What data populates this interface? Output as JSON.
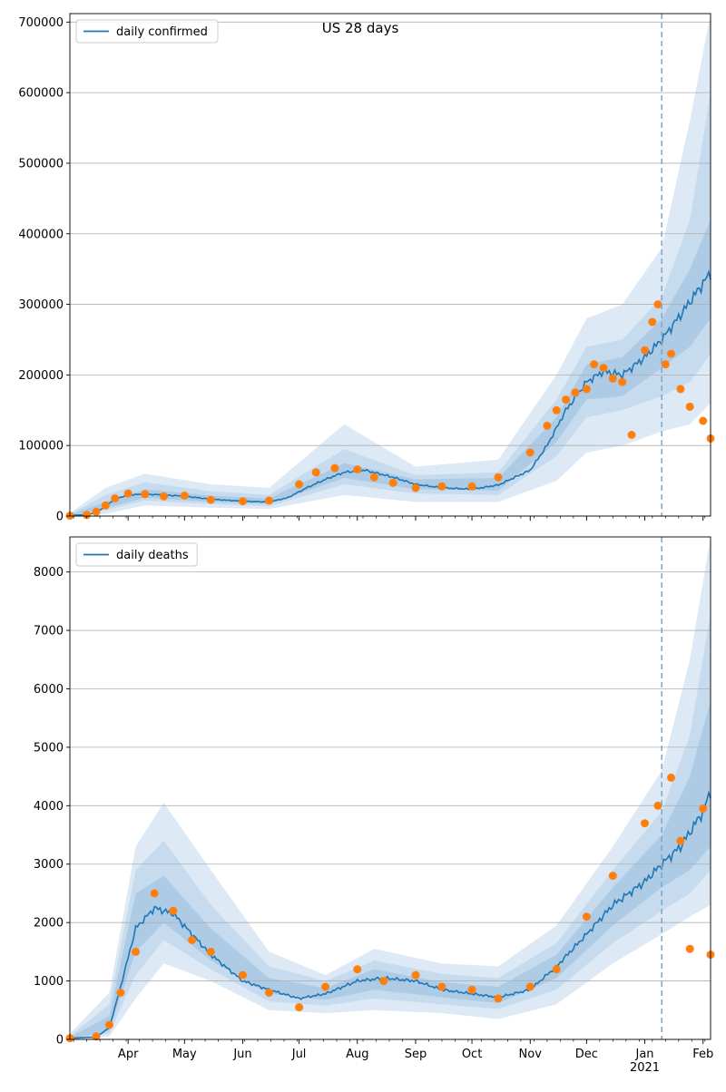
{
  "figure_title": "US 28 days",
  "chart_data": [
    {
      "type": "line",
      "legend": [
        "daily confirmed"
      ],
      "legend_position": "top-left",
      "grid": "y",
      "xlim": [
        "2020-03-01",
        "2021-02-05"
      ],
      "ylim": [
        0,
        712000
      ],
      "yticks": [
        0,
        100000,
        200000,
        300000,
        400000,
        500000,
        600000,
        700000
      ],
      "vline": "2021-01-10",
      "series": [
        {
          "name": "daily confirmed",
          "role": "model-median",
          "x": [
            "2020-03-01",
            "2020-03-10",
            "2020-03-15",
            "2020-03-20",
            "2020-03-25",
            "2020-04-01",
            "2020-04-10",
            "2020-04-20",
            "2020-05-01",
            "2020-05-15",
            "2020-06-01",
            "2020-06-15",
            "2020-06-25",
            "2020-07-05",
            "2020-07-15",
            "2020-07-25",
            "2020-08-05",
            "2020-08-20",
            "2020-09-01",
            "2020-09-15",
            "2020-10-01",
            "2020-10-15",
            "2020-11-01",
            "2020-11-10",
            "2020-11-20",
            "2020-12-01",
            "2020-12-10",
            "2020-12-20",
            "2021-01-01",
            "2021-01-10",
            "2021-01-20",
            "2021-02-01",
            "2021-02-05"
          ],
          "y": [
            1000,
            2000,
            5000,
            14000,
            24000,
            30000,
            31000,
            30000,
            28000,
            24000,
            21000,
            20000,
            26000,
            40000,
            52000,
            62000,
            65000,
            55000,
            45000,
            40000,
            38000,
            44000,
            65000,
            100000,
            150000,
            190000,
            205000,
            200000,
            225000,
            250000,
            285000,
            330000,
            345000
          ]
        },
        {
          "name": "observed",
          "role": "observed-dots",
          "x": [
            "2020-03-01",
            "2020-03-10",
            "2020-03-15",
            "2020-03-20",
            "2020-03-25",
            "2020-04-01",
            "2020-04-10",
            "2020-04-20",
            "2020-05-01",
            "2020-05-15",
            "2020-06-01",
            "2020-06-15",
            "2020-07-01",
            "2020-07-10",
            "2020-07-20",
            "2020-08-01",
            "2020-08-10",
            "2020-08-20",
            "2020-09-01",
            "2020-09-15",
            "2020-10-01",
            "2020-10-15",
            "2020-11-01",
            "2020-11-10",
            "2020-11-15",
            "2020-11-20",
            "2020-11-25",
            "2020-12-01",
            "2020-12-05",
            "2020-12-10",
            "2020-12-15",
            "2020-12-20",
            "2020-12-25",
            "2021-01-01",
            "2021-01-05",
            "2021-01-08",
            "2021-01-12",
            "2021-01-15",
            "2021-01-20",
            "2021-01-25",
            "2021-02-01",
            "2021-02-05"
          ],
          "y": [
            500,
            1500,
            6000,
            15000,
            25000,
            32000,
            31000,
            28000,
            29000,
            23000,
            21000,
            22000,
            45000,
            62000,
            68000,
            66000,
            55000,
            47000,
            40000,
            42000,
            42000,
            55000,
            90000,
            128000,
            150000,
            165000,
            175000,
            180000,
            215000,
            210000,
            195000,
            190000,
            115000,
            235000,
            275000,
            300000,
            215000,
            230000,
            180000,
            155000,
            135000,
            110000
          ]
        }
      ],
      "bands": [
        {
          "level": "outer",
          "x": [
            "2020-03-01",
            "2020-03-20",
            "2020-04-10",
            "2020-05-15",
            "2020-06-15",
            "2020-07-25",
            "2020-09-01",
            "2020-10-15",
            "2020-11-15",
            "2020-12-01",
            "2020-12-20",
            "2021-01-10",
            "2021-01-25",
            "2021-02-05"
          ],
          "lower": [
            0,
            3000,
            15000,
            12000,
            10000,
            30000,
            20000,
            20000,
            50000,
            90000,
            100000,
            120000,
            130000,
            160000
          ],
          "upper": [
            4000,
            40000,
            60000,
            45000,
            40000,
            130000,
            70000,
            80000,
            200000,
            280000,
            300000,
            380000,
            560000,
            712000
          ]
        },
        {
          "level": "middle",
          "x": [
            "2020-03-01",
            "2020-03-20",
            "2020-04-10",
            "2020-05-15",
            "2020-06-15",
            "2020-07-25",
            "2020-09-01",
            "2020-10-15",
            "2020-11-15",
            "2020-12-01",
            "2020-12-20",
            "2021-01-10",
            "2021-01-25",
            "2021-02-05"
          ],
          "lower": [
            0,
            8000,
            22000,
            17000,
            14000,
            45000,
            32000,
            30000,
            85000,
            140000,
            150000,
            170000,
            190000,
            230000
          ],
          "upper": [
            3000,
            30000,
            48000,
            35000,
            30000,
            95000,
            58000,
            62000,
            165000,
            240000,
            250000,
            310000,
            420000,
            600000
          ]
        },
        {
          "level": "inner",
          "x": [
            "2020-03-01",
            "2020-03-20",
            "2020-04-10",
            "2020-05-15",
            "2020-06-15",
            "2020-07-25",
            "2020-09-01",
            "2020-10-15",
            "2020-11-15",
            "2020-12-01",
            "2020-12-20",
            "2021-01-10",
            "2021-01-25",
            "2021-02-05"
          ],
          "lower": [
            0,
            11000,
            26000,
            20000,
            17000,
            54000,
            38000,
            36000,
            105000,
            165000,
            170000,
            210000,
            240000,
            280000
          ],
          "upper": [
            2000,
            20000,
            38000,
            29000,
            25000,
            75000,
            52000,
            54000,
            140000,
            215000,
            225000,
            280000,
            350000,
            420000
          ]
        }
      ]
    },
    {
      "type": "line",
      "legend": [
        "daily deaths"
      ],
      "legend_position": "top-left",
      "grid": "y",
      "xlim": [
        "2020-03-01",
        "2021-02-05"
      ],
      "ylim": [
        0,
        8600
      ],
      "yticks": [
        0,
        1000,
        2000,
        3000,
        4000,
        5000,
        6000,
        7000,
        8000
      ],
      "xticks": [
        "Apr",
        "May",
        "Jun",
        "Jul",
        "Aug",
        "Sep",
        "Oct",
        "Nov",
        "Dec",
        "Jan",
        "Feb"
      ],
      "xtick_year": "2021",
      "vline": "2021-01-10",
      "series": [
        {
          "name": "daily deaths",
          "role": "model-median",
          "x": [
            "2020-03-01",
            "2020-03-15",
            "2020-03-22",
            "2020-03-28",
            "2020-04-05",
            "2020-04-15",
            "2020-04-25",
            "2020-05-05",
            "2020-05-15",
            "2020-06-01",
            "2020-06-15",
            "2020-07-01",
            "2020-07-15",
            "2020-08-01",
            "2020-08-15",
            "2020-09-01",
            "2020-09-15",
            "2020-10-01",
            "2020-10-15",
            "2020-11-01",
            "2020-11-15",
            "2020-12-01",
            "2020-12-15",
            "2021-01-01",
            "2021-01-10",
            "2021-01-20",
            "2021-02-01",
            "2021-02-05"
          ],
          "y": [
            20,
            40,
            200,
            900,
            1900,
            2250,
            2150,
            1800,
            1450,
            1000,
            850,
            700,
            780,
            1000,
            1050,
            1000,
            850,
            780,
            720,
            850,
            1250,
            1800,
            2300,
            2700,
            3000,
            3300,
            3900,
            4250
          ]
        },
        {
          "name": "observed",
          "role": "observed-dots",
          "x": [
            "2020-03-01",
            "2020-03-15",
            "2020-03-22",
            "2020-03-28",
            "2020-04-05",
            "2020-04-15",
            "2020-04-25",
            "2020-05-05",
            "2020-05-15",
            "2020-06-01",
            "2020-06-15",
            "2020-07-01",
            "2020-07-15",
            "2020-08-01",
            "2020-08-15",
            "2020-09-01",
            "2020-09-15",
            "2020-10-01",
            "2020-10-15",
            "2020-11-01",
            "2020-11-15",
            "2020-12-01",
            "2020-12-15",
            "2021-01-01",
            "2021-01-08",
            "2021-01-15",
            "2021-01-20",
            "2021-01-25",
            "2021-02-01",
            "2021-02-05"
          ],
          "y": [
            20,
            50,
            250,
            800,
            1500,
            2500,
            2200,
            1700,
            1500,
            1100,
            800,
            550,
            900,
            1200,
            1000,
            1100,
            900,
            850,
            700,
            900,
            1200,
            2100,
            2800,
            3700,
            4000,
            4480,
            3400,
            1550,
            3950,
            1450
          ]
        }
      ],
      "bands": [
        {
          "level": "outer",
          "x": [
            "2020-03-01",
            "2020-03-22",
            "2020-04-05",
            "2020-04-20",
            "2020-05-15",
            "2020-06-15",
            "2020-07-15",
            "2020-08-10",
            "2020-09-15",
            "2020-10-15",
            "2020-11-15",
            "2020-12-15",
            "2021-01-10",
            "2021-01-25",
            "2021-02-05"
          ],
          "lower": [
            0,
            50,
            700,
            1300,
            1000,
            500,
            450,
            500,
            450,
            350,
            600,
            1300,
            1800,
            2100,
            2300
          ],
          "upper": [
            100,
            800,
            3300,
            4050,
            2900,
            1500,
            1100,
            1550,
            1300,
            1250,
            1950,
            3300,
            4600,
            6500,
            8600
          ]
        },
        {
          "level": "middle",
          "x": [
            "2020-03-01",
            "2020-03-22",
            "2020-04-05",
            "2020-04-20",
            "2020-05-15",
            "2020-06-15",
            "2020-07-15",
            "2020-08-10",
            "2020-09-15",
            "2020-10-15",
            "2020-11-15",
            "2020-12-15",
            "2021-01-10",
            "2021-01-25",
            "2021-02-05"
          ],
          "lower": [
            0,
            100,
            1100,
            1700,
            1200,
            650,
            580,
            700,
            600,
            520,
            850,
            1650,
            2200,
            2500,
            2900
          ],
          "upper": [
            60,
            600,
            2900,
            3400,
            2300,
            1250,
            1000,
            1350,
            1120,
            1050,
            1650,
            2900,
            3900,
            5200,
            7300
          ]
        },
        {
          "level": "inner",
          "x": [
            "2020-03-01",
            "2020-03-22",
            "2020-04-05",
            "2020-04-20",
            "2020-05-15",
            "2020-06-15",
            "2020-07-15",
            "2020-08-10",
            "2020-09-15",
            "2020-10-15",
            "2020-11-15",
            "2020-12-15",
            "2021-01-10",
            "2021-01-25",
            "2021-02-05"
          ],
          "lower": [
            0,
            150,
            1500,
            2000,
            1350,
            780,
            680,
            850,
            720,
            620,
            1050,
            1950,
            2600,
            2900,
            3300
          ],
          "upper": [
            40,
            400,
            2500,
            2800,
            1900,
            1050,
            880,
            1200,
            980,
            900,
            1450,
            2600,
            3500,
            4500,
            5800
          ]
        }
      ]
    }
  ],
  "colors": {
    "line": "#1f77b4",
    "dots": "#ff7f0e",
    "band_outer": "#dde9f4",
    "band_middle": "#c7dbee",
    "band_inner": "#aecbe6",
    "grid": "#b0b0b0",
    "vline": "#7aa6c9"
  }
}
